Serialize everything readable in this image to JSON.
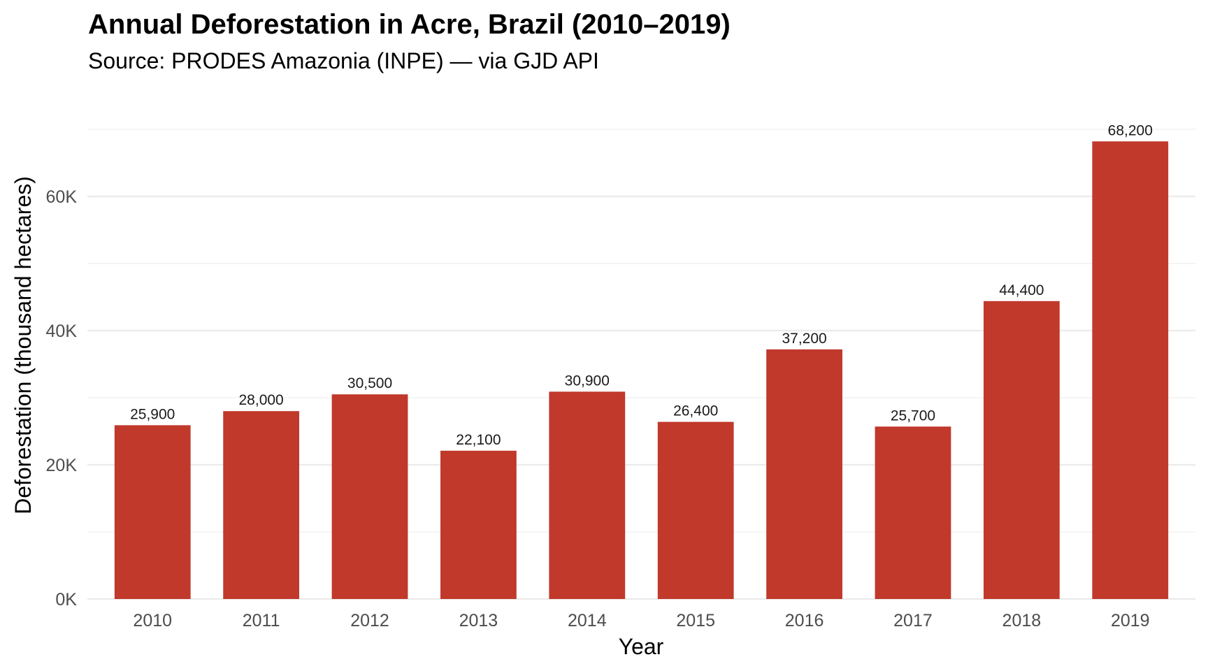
{
  "chart_data": {
    "type": "bar",
    "title": "Annual Deforestation in Acre, Brazil (2010–2019)",
    "subtitle": "Source: PRODES Amazonia (INPE) — via GJD API",
    "xlabel": "Year",
    "ylabel": "Deforestation (thousand hectares)",
    "categories": [
      "2010",
      "2011",
      "2012",
      "2013",
      "2014",
      "2015",
      "2016",
      "2017",
      "2018",
      "2019"
    ],
    "values": [
      25900,
      28000,
      30500,
      22100,
      30900,
      26400,
      37200,
      25700,
      44400,
      68200
    ],
    "data_labels": [
      "25,900",
      "28,000",
      "30,500",
      "22,100",
      "30,900",
      "26,400",
      "37,200",
      "25,700",
      "44,400",
      "68,200"
    ],
    "ylim": [
      0,
      71000
    ],
    "y_major_ticks": [
      0,
      20000,
      40000,
      60000
    ],
    "y_tick_labels": [
      "0K",
      "20K",
      "40K",
      "60K"
    ],
    "y_minor_ticks": [
      10000,
      30000,
      50000,
      70000
    ],
    "grid": true,
    "legend": "none",
    "bar_color": "#c0392b"
  }
}
